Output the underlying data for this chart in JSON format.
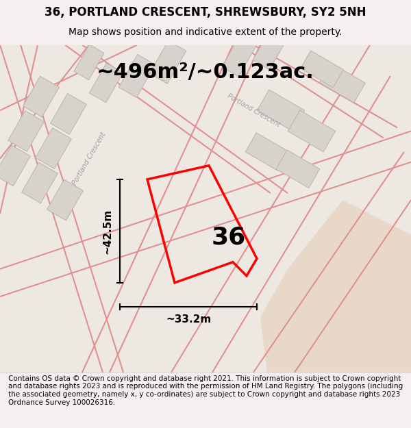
{
  "title": "36, PORTLAND CRESCENT, SHREWSBURY, SY2 5NH",
  "subtitle": "Map shows position and indicative extent of the property.",
  "area_text": "~496m²/~0.123ac.",
  "label_36": "36",
  "dim_width": "~33.2m",
  "dim_height": "~42.5m",
  "footer": "Contains OS data © Crown copyright and database right 2021. This information is subject to Crown copyright and database rights 2023 and is reproduced with the permission of HM Land Registry. The polygons (including the associated geometry, namely x, y co-ordinates) are subject to Crown copyright and database rights 2023 Ordnance Survey 100026316.",
  "bg_color": "#f5f0f0",
  "map_bg": "#f0ece8",
  "plot_color": "red",
  "plot_lw": 2.5,
  "road_color": "#e8a0a0",
  "building_color": "#d8d4d0",
  "building_edge": "#c0b8b4",
  "footer_bg": "#ffffff",
  "title_fontsize": 12,
  "subtitle_fontsize": 10,
  "area_fontsize": 22,
  "label_fontsize": 26,
  "dim_fontsize": 11,
  "footer_fontsize": 7.5
}
